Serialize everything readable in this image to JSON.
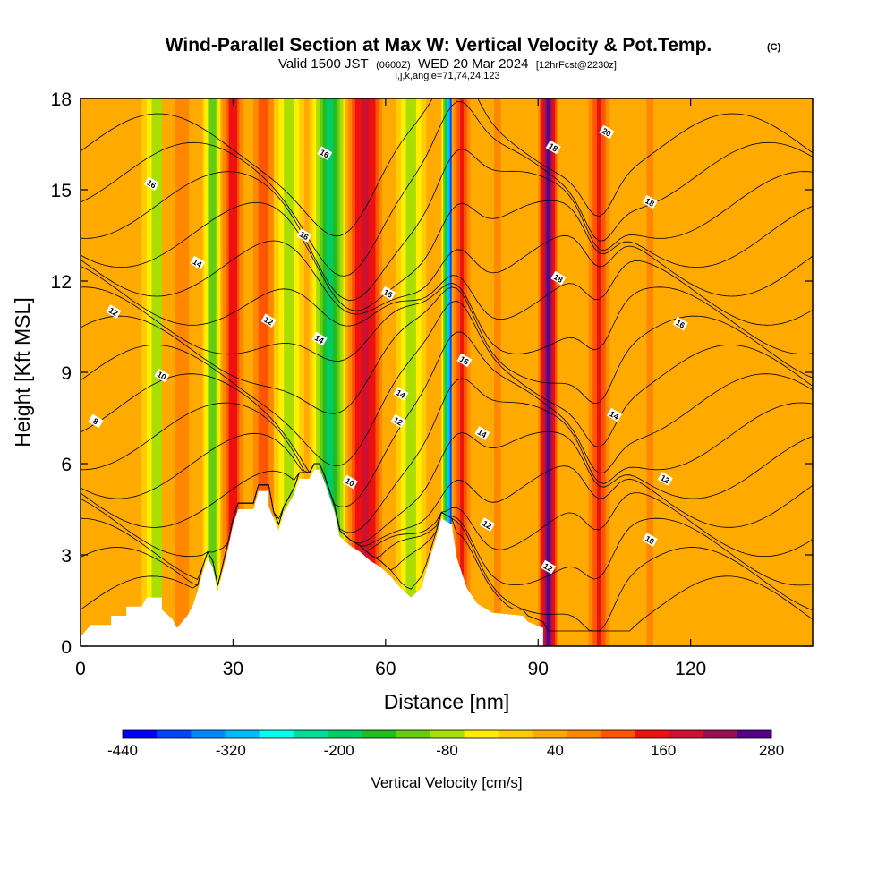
{
  "chart_data": {
    "type": "heatmap",
    "title": "Wind-Parallel Section at Max W: Vertical Velocity & Pot.Temp.",
    "copyright": "(C)",
    "subtitle_parts": [
      "Valid 1500 JST",
      "(0600Z)",
      "WED 20 Mar 2024",
      "[12hrFcst@2230z]"
    ],
    "subtitle2": "i,j,k,angle=71,74,24,123",
    "xlabel": "Distance [nm]",
    "ylabel": "Height [Kft MSL]",
    "xlim": [
      0,
      144
    ],
    "ylim": [
      0,
      18
    ],
    "x_ticks": [
      0,
      30,
      60,
      90,
      120
    ],
    "y_ticks": [
      0,
      3,
      6,
      9,
      12,
      15,
      18
    ],
    "colorbar": {
      "label": "Vertical Velocity [cm/s]",
      "range": [
        -440,
        280
      ],
      "tick_labels": [
        "-440",
        "-320",
        "-200",
        "-80",
        "40",
        "160",
        "280"
      ],
      "colors": [
        "#0000ff",
        "#0044ff",
        "#0088ff",
        "#00bbff",
        "#00ffee",
        "#00dd99",
        "#00cc66",
        "#22bb22",
        "#66cc11",
        "#aadd00",
        "#ffee00",
        "#ffcc00",
        "#ffaa00",
        "#ff8800",
        "#ff5500",
        "#ee1111",
        "#cc1133",
        "#991155",
        "#550088"
      ]
    },
    "background_w": 15,
    "w_bands": [
      {
        "x": 15,
        "w": -80,
        "width": 3
      },
      {
        "x": 20,
        "w": 70,
        "width": 4
      },
      {
        "x": 26,
        "w": -130,
        "width": 2
      },
      {
        "x": 30,
        "w": 160,
        "width": 2.5
      },
      {
        "x": 36,
        "w": 110,
        "width": 3
      },
      {
        "x": 41,
        "w": -80,
        "width": 3
      },
      {
        "x": 49,
        "w": -190,
        "width": 4
      },
      {
        "x": 56,
        "w": 190,
        "width": 4
      },
      {
        "x": 65,
        "w": -80,
        "width": 3
      },
      {
        "x": 73,
        "w": -380,
        "width": 2
      },
      {
        "x": 75,
        "w": 150,
        "width": 2
      },
      {
        "x": 82,
        "w": 60,
        "width": 4
      },
      {
        "x": 92,
        "w": 260,
        "width": 2
      },
      {
        "x": 102,
        "w": 150,
        "width": 2.5
      },
      {
        "x": 112,
        "w": 60,
        "width": 4
      },
      {
        "x": 120,
        "w": 50,
        "width": 3
      },
      {
        "x": 6,
        "w": 50,
        "width": 6
      }
    ],
    "terrain": [
      [
        0,
        0.3
      ],
      [
        2,
        0.7
      ],
      [
        6,
        0.7
      ],
      [
        6,
        1.0
      ],
      [
        9,
        1.0
      ],
      [
        9,
        1.3
      ],
      [
        12,
        1.3
      ],
      [
        13,
        1.6
      ],
      [
        16,
        1.6
      ],
      [
        16,
        1.2
      ],
      [
        18,
        0.9
      ],
      [
        19,
        0.6
      ],
      [
        21,
        1.0
      ],
      [
        22,
        1.3
      ],
      [
        23,
        1.8
      ],
      [
        24,
        2.4
      ],
      [
        25,
        2.9
      ],
      [
        26,
        2.6
      ],
      [
        27,
        1.8
      ],
      [
        28,
        2.5
      ],
      [
        29,
        3.2
      ],
      [
        30,
        4.0
      ],
      [
        31,
        4.5
      ],
      [
        34,
        4.5
      ],
      [
        35,
        5.1
      ],
      [
        37,
        5.1
      ],
      [
        37,
        4.6
      ],
      [
        39,
        3.8
      ],
      [
        40,
        4.4
      ],
      [
        42,
        5.0
      ],
      [
        43,
        5.5
      ],
      [
        45,
        5.5
      ],
      [
        46,
        5.8
      ],
      [
        47,
        5.8
      ],
      [
        48,
        5.4
      ],
      [
        50,
        4.4
      ],
      [
        51,
        3.6
      ],
      [
        53,
        3.3
      ],
      [
        55,
        3.1
      ],
      [
        57,
        2.8
      ],
      [
        59,
        2.6
      ],
      [
        61,
        2.3
      ],
      [
        63,
        1.9
      ],
      [
        65,
        1.6
      ],
      [
        67,
        1.9
      ],
      [
        68,
        2.5
      ],
      [
        70,
        3.6
      ],
      [
        71,
        4.2
      ],
      [
        73,
        4.0
      ],
      [
        74,
        2.9
      ],
      [
        76,
        1.9
      ],
      [
        78,
        1.4
      ],
      [
        81,
        1.1
      ],
      [
        87,
        1.0
      ],
      [
        88,
        0.8
      ],
      [
        91,
        0.6
      ],
      [
        91,
        0
      ]
    ],
    "theta_levels": [
      8,
      10,
      12,
      14,
      16,
      18,
      20
    ],
    "contour_labels": [
      {
        "text": "8",
        "x": 3,
        "y": 7.4
      },
      {
        "text": "10",
        "x": 16,
        "y": 8.9
      },
      {
        "text": "12",
        "x": 6.5,
        "y": 11.0
      },
      {
        "text": "14",
        "x": 23,
        "y": 12.6
      },
      {
        "text": "16",
        "x": 14,
        "y": 15.2
      },
      {
        "text": "12",
        "x": 37,
        "y": 10.7
      },
      {
        "text": "14",
        "x": 47,
        "y": 10.1
      },
      {
        "text": "16",
        "x": 44,
        "y": 13.5
      },
      {
        "text": "16",
        "x": 48,
        "y": 16.2
      },
      {
        "text": "16",
        "x": 60.5,
        "y": 11.6
      },
      {
        "text": "10",
        "x": 53,
        "y": 5.4
      },
      {
        "text": "14",
        "x": 63,
        "y": 8.3
      },
      {
        "text": "12",
        "x": 62.5,
        "y": 7.4
      },
      {
        "text": "16",
        "x": 75.5,
        "y": 9.4
      },
      {
        "text": "14",
        "x": 79,
        "y": 7.0
      },
      {
        "text": "12",
        "x": 80,
        "y": 4.0
      },
      {
        "text": "12",
        "x": 92,
        "y": 2.6
      },
      {
        "text": "18",
        "x": 93,
        "y": 16.4
      },
      {
        "text": "18",
        "x": 94,
        "y": 12.1
      },
      {
        "text": "20",
        "x": 103.5,
        "y": 16.9
      },
      {
        "text": "18",
        "x": 112,
        "y": 14.6
      },
      {
        "text": "16",
        "x": 118,
        "y": 10.6
      },
      {
        "text": "14",
        "x": 105,
        "y": 7.6
      },
      {
        "text": "12",
        "x": 115,
        "y": 5.5
      },
      {
        "text": "10",
        "x": 112,
        "y": 3.5
      }
    ]
  }
}
